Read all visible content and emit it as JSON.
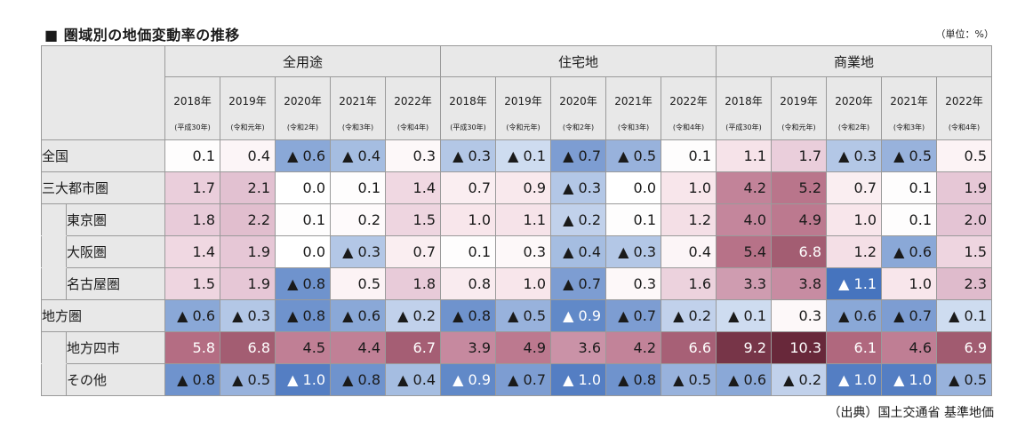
{
  "title": "■ 圏域別の地価変動率の推移",
  "unit": "（単位：%）",
  "source": "（出典）国土交通省 基準地価",
  "chart_data": {
    "type": "table",
    "groups": [
      "全用途",
      "住宅地",
      "商業地"
    ],
    "years": [
      "2018年",
      "2019年",
      "2020年",
      "2021年",
      "2022年"
    ],
    "eras": [
      "(平成30年)",
      "(令和元年)",
      "(令和2年)",
      "(令和3年)",
      "(令和4年)"
    ],
    "rows": [
      {
        "label": "全国",
        "level": 0,
        "values": [
          0.1,
          0.4,
          -0.6,
          -0.4,
          0.3,
          -0.3,
          -0.1,
          -0.7,
          -0.5,
          0.1,
          1.1,
          1.7,
          -0.3,
          -0.5,
          0.5
        ]
      },
      {
        "label": "三大都市圏",
        "level": 0,
        "values": [
          1.7,
          2.1,
          0.0,
          0.1,
          1.4,
          0.7,
          0.9,
          -0.3,
          0.0,
          1.0,
          4.2,
          5.2,
          0.7,
          0.1,
          1.9
        ]
      },
      {
        "label": "東京圏",
        "level": 1,
        "values": [
          1.8,
          2.2,
          0.1,
          0.2,
          1.5,
          1.0,
          1.1,
          -0.2,
          0.1,
          1.2,
          4.0,
          4.9,
          1.0,
          0.1,
          2.0
        ]
      },
      {
        "label": "大阪圏",
        "level": 1,
        "values": [
          1.4,
          1.9,
          0.0,
          -0.3,
          0.7,
          0.1,
          0.3,
          -0.4,
          -0.3,
          0.4,
          5.4,
          6.8,
          1.2,
          -0.6,
          1.5
        ]
      },
      {
        "label": "名古屋圏",
        "level": 1,
        "values": [
          1.5,
          1.9,
          -0.8,
          0.5,
          1.8,
          0.8,
          1.0,
          -0.7,
          0.3,
          1.6,
          3.3,
          3.8,
          -1.1,
          1.0,
          2.3
        ]
      },
      {
        "label": "地方圏",
        "level": 0,
        "values": [
          -0.6,
          -0.3,
          -0.8,
          -0.6,
          -0.2,
          -0.8,
          -0.5,
          -0.9,
          -0.7,
          -0.2,
          -0.1,
          0.3,
          -0.6,
          -0.7,
          -0.1
        ]
      },
      {
        "label": "地方四市",
        "level": 1,
        "values": [
          5.8,
          6.8,
          4.5,
          4.4,
          6.7,
          3.9,
          4.9,
          3.6,
          4.2,
          6.6,
          9.2,
          10.3,
          6.1,
          4.6,
          6.9
        ]
      },
      {
        "label": "その他",
        "level": 1,
        "values": [
          -0.8,
          -0.5,
          -1.0,
          -0.8,
          -0.4,
          -0.9,
          -0.7,
          -1.0,
          -0.8,
          -0.5,
          -0.6,
          -0.2,
          -1.0,
          -1.0,
          -0.5
        ]
      }
    ],
    "negative_marker": "▲"
  }
}
